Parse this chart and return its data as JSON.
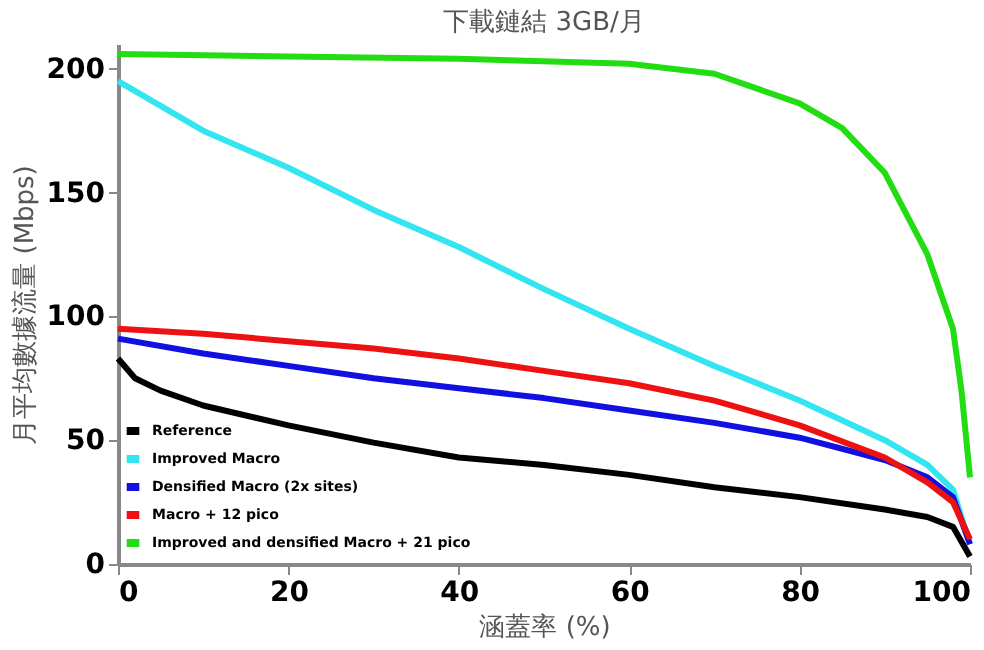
{
  "chart_data": {
    "type": "line",
    "title": "下載鏈結 3GB/月",
    "xlabel": "涵蓋率 (%)",
    "ylabel": "月平均數據流量 (Mbps)",
    "xlim": [
      0,
      100
    ],
    "ylim": [
      0,
      210
    ],
    "xticks": [
      0,
      20,
      40,
      60,
      80,
      100
    ],
    "yticks": [
      0,
      50,
      100,
      150,
      200
    ],
    "grid": false,
    "legend": "bottom left",
    "marker": "none",
    "line_style": "solid",
    "series": [
      {
        "name": "Reference",
        "color": "#000000",
        "x": [
          0,
          2,
          5,
          10,
          20,
          30,
          40,
          50,
          60,
          70,
          80,
          90,
          95,
          98,
          100
        ],
        "values": [
          83,
          75,
          70,
          64,
          56,
          49,
          43,
          40,
          36,
          31,
          27,
          22,
          19,
          15,
          3
        ]
      },
      {
        "name": "Improved Macro",
        "color": "#33e5f0",
        "x": [
          0,
          5,
          10,
          20,
          30,
          40,
          50,
          60,
          70,
          80,
          90,
          95,
          98,
          100
        ],
        "values": [
          195,
          185,
          175,
          160,
          143,
          128,
          111,
          95,
          80,
          66,
          50,
          40,
          30,
          8
        ]
      },
      {
        "name": "Densified Macro (2x sites)",
        "color": "#1010e0",
        "x": [
          0,
          10,
          20,
          30,
          40,
          50,
          60,
          70,
          80,
          90,
          95,
          98,
          100
        ],
        "values": [
          91,
          85,
          80,
          75,
          71,
          67,
          62,
          57,
          51,
          42,
          35,
          27,
          8
        ]
      },
      {
        "name": "Macro + 12 pico",
        "color": "#ee1111",
        "x": [
          0,
          10,
          20,
          30,
          40,
          50,
          60,
          70,
          80,
          90,
          95,
          98,
          100
        ],
        "values": [
          95,
          93,
          90,
          87,
          83,
          78,
          73,
          66,
          56,
          43,
          33,
          25,
          10
        ]
      },
      {
        "name": "Improved and densified Macro + 21 pico",
        "color": "#22dd11",
        "x": [
          0,
          20,
          40,
          60,
          70,
          80,
          85,
          90,
          95,
          97,
          98,
          99,
          100
        ],
        "values": [
          206,
          205,
          204,
          202,
          198,
          186,
          176,
          158,
          125,
          105,
          95,
          70,
          35
        ]
      }
    ]
  }
}
